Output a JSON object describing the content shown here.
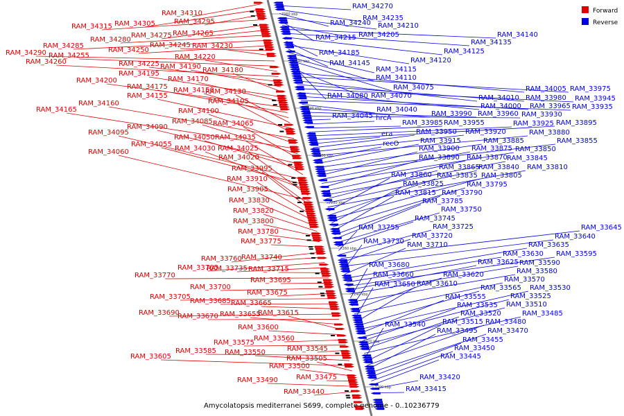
{
  "caption": "Amycolatopsis mediterranei S699, complete genome - 0..10236779",
  "legend": [
    {
      "label": "Forward",
      "color": "#e00000"
    },
    {
      "label": "Reverse",
      "color": "#0000e6"
    }
  ],
  "colors": {
    "forward": "#e00000",
    "reverse": "#0000e6",
    "axis": "#777777"
  },
  "ticks": [
    "7360 kbp",
    "7340 kbp",
    "7320 kbp",
    "7300 kbp",
    "7280 kbp",
    "7260 kbp",
    "7240 kbp",
    "7220 kbp",
    "7200 kbp"
  ],
  "forward_labels": [
    "RAM_34310",
    "RAM_34305",
    "RAM_34295",
    "RAM_34315",
    "RAM_34275",
    "RAM_34265",
    "RAM_34280",
    "RAM_34285",
    "RAM_34250",
    "RAM_34245",
    "RAM_34230",
    "RAM_34290",
    "RAM_34255",
    "RAM_34220",
    "RAM_34260",
    "RAM_34225",
    "RAM_34190",
    "RAM_34180",
    "RAM_34195",
    "RAM_34170",
    "RAM_34200",
    "RAM_34175",
    "RAM_34150",
    "RAM_34130",
    "RAM_34155",
    "RAM_34105",
    "RAM_34160",
    "RAM_34100",
    "RAM_34165",
    "RAM_34085",
    "RAM_34065",
    "RAM_34090",
    "RAM_34050",
    "RAM_34035",
    "RAM_34095",
    "RAM_34055",
    "RAM_34030",
    "RAM_34025",
    "RAM_34060",
    "RAM_34020",
    "RAM_33995",
    "RAM_33910",
    "RAM_33905",
    "RAM_33830",
    "RAM_33820",
    "RAM_33800",
    "RAM_33780",
    "RAM_33775",
    "RAM_33760",
    "RAM_33740",
    "RAM_33765",
    "RAM_33735",
    "RAM_33715",
    "RAM_33770",
    "RAM_33695",
    "RAM_33700",
    "RAM_33675",
    "RAM_33705",
    "RAM_33685",
    "RAM_33665",
    "RAM_33690",
    "RAM_33670",
    "RAM_33655",
    "RAM_33615",
    "RAM_33600",
    "RAM_33560",
    "RAM_33575",
    "RAM_33545",
    "RAM_33585",
    "RAM_33550",
    "RAM_33605",
    "RAM_33505",
    "RAM_33500",
    "RAM_33475",
    "RAM_33490",
    "RAM_33440"
  ],
  "reverse_labels": [
    "RAM_34270",
    "RAM_34235",
    "RAM_34240",
    "RAM_34210",
    "RAM_34215",
    "RAM_34205",
    "RAM_34140",
    "RAM_34135",
    "RAM_34125",
    "RAM_34185",
    "RAM_34120",
    "RAM_34145",
    "RAM_34115",
    "RAM_34110",
    "RAM_34075",
    "RAM_34080",
    "RAM_34070",
    "RAM_34005",
    "RAM_33975",
    "RAM_34010",
    "RAM_33980",
    "RAM_33945",
    "RAM_34000",
    "RAM_33965",
    "RAM_33935",
    "RAM_34040",
    "RAM_33990",
    "RAM_33960",
    "RAM_33930",
    "RAM_34045",
    "hrcA",
    "RAM_33985",
    "RAM_33955",
    "RAM_33925",
    "RAM_33895",
    "era",
    "RAM_33950",
    "RAM_33920",
    "RAM_33880",
    "recO",
    "RAM_33915",
    "RAM_33885",
    "RAM_33855",
    "RAM_33900",
    "RAM_33875",
    "RAM_33850",
    "RAM_33890",
    "RAM_33870",
    "RAM_33845",
    "RAM_33865",
    "RAM_33840",
    "RAM_33810",
    "RAM_33860",
    "RAM_33835",
    "RAM_33805",
    "RAM_33825",
    "RAM_33795",
    "RAM_33815",
    "RAM_33790",
    "RAM_33785",
    "RAM_33750",
    "RAM_33745",
    "RAM_33755",
    "RAM_33725",
    "RAM_33645",
    "RAM_33720",
    "RAM_33640",
    "RAM_33730",
    "RAM_33710",
    "RAM_33635",
    "RAM_33630",
    "RAM_33595",
    "RAM_33625",
    "RAM_33590",
    "RAM_33680",
    "RAM_33580",
    "RAM_33660",
    "RAM_33620",
    "RAM_33570",
    "RAM_33650",
    "RAM_33610",
    "RAM_33565",
    "RAM_33530",
    "RAM_33555",
    "RAM_33525",
    "RAM_33535",
    "RAM_33510",
    "RAM_33520",
    "RAM_33485",
    "RAM_33540",
    "RAM_33515",
    "RAM_33480",
    "RAM_33495",
    "RAM_33470",
    "RAM_33455",
    "RAM_33450",
    "RAM_33445",
    "RAM_33420",
    "RAM_33415"
  ]
}
